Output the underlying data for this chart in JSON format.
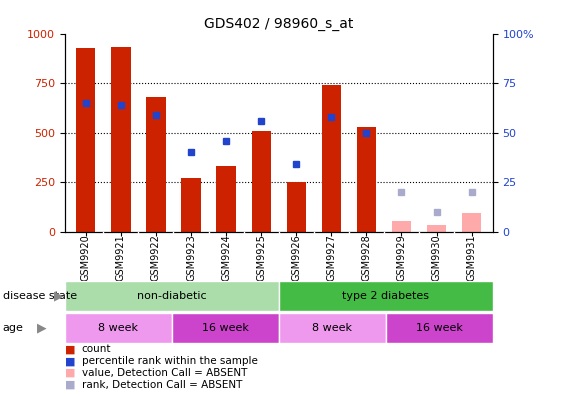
{
  "title": "GDS402 / 98960_s_at",
  "samples": [
    "GSM9920",
    "GSM9921",
    "GSM9922",
    "GSM9923",
    "GSM9924",
    "GSM9925",
    "GSM9926",
    "GSM9927",
    "GSM9928",
    "GSM9929",
    "GSM9930",
    "GSM9931"
  ],
  "count_values": [
    930,
    935,
    680,
    270,
    330,
    510,
    250,
    740,
    530,
    null,
    null,
    null
  ],
  "rank_values": [
    65,
    64,
    59,
    40,
    46,
    56,
    34,
    58,
    50,
    null,
    null,
    null
  ],
  "absent_count_values": [
    null,
    null,
    null,
    null,
    null,
    null,
    null,
    null,
    null,
    55,
    35,
    95
  ],
  "absent_rank_values": [
    null,
    null,
    null,
    null,
    null,
    null,
    null,
    null,
    null,
    20,
    10,
    20
  ],
  "ylim_left": [
    0,
    1000
  ],
  "ylim_right": [
    0,
    100
  ],
  "yticks_left": [
    0,
    250,
    500,
    750,
    1000
  ],
  "yticks_right": [
    0,
    25,
    50,
    75,
    100
  ],
  "disease_state_groups": [
    {
      "label": "non-diabetic",
      "start": 0,
      "end": 6,
      "color": "#AADDAA"
    },
    {
      "label": "type 2 diabetes",
      "start": 6,
      "end": 12,
      "color": "#44BB44"
    }
  ],
  "age_groups": [
    {
      "label": "8 week",
      "start": 0,
      "end": 3,
      "color": "#EE99EE"
    },
    {
      "label": "16 week",
      "start": 3,
      "end": 6,
      "color": "#CC44CC"
    },
    {
      "label": "8 week",
      "start": 6,
      "end": 9,
      "color": "#EE99EE"
    },
    {
      "label": "16 week",
      "start": 9,
      "end": 12,
      "color": "#CC44CC"
    }
  ],
  "bar_color": "#CC2200",
  "rank_color": "#2244CC",
  "absent_count_color": "#FFAAAA",
  "absent_rank_color": "#AAAACC",
  "legend_items": [
    {
      "label": "count",
      "color": "#CC2200"
    },
    {
      "label": "percentile rank within the sample",
      "color": "#2244CC"
    },
    {
      "label": "value, Detection Call = ABSENT",
      "color": "#FFAAAA"
    },
    {
      "label": "rank, Detection Call = ABSENT",
      "color": "#AAAACC"
    }
  ],
  "background_color": "#FFFFFF",
  "plot_bg_color": "#FFFFFF",
  "axis_label_left_color": "#CC2200",
  "axis_label_right_color": "#2244CC",
  "xtick_bg_color": "#CCCCCC",
  "bar_width": 0.55
}
